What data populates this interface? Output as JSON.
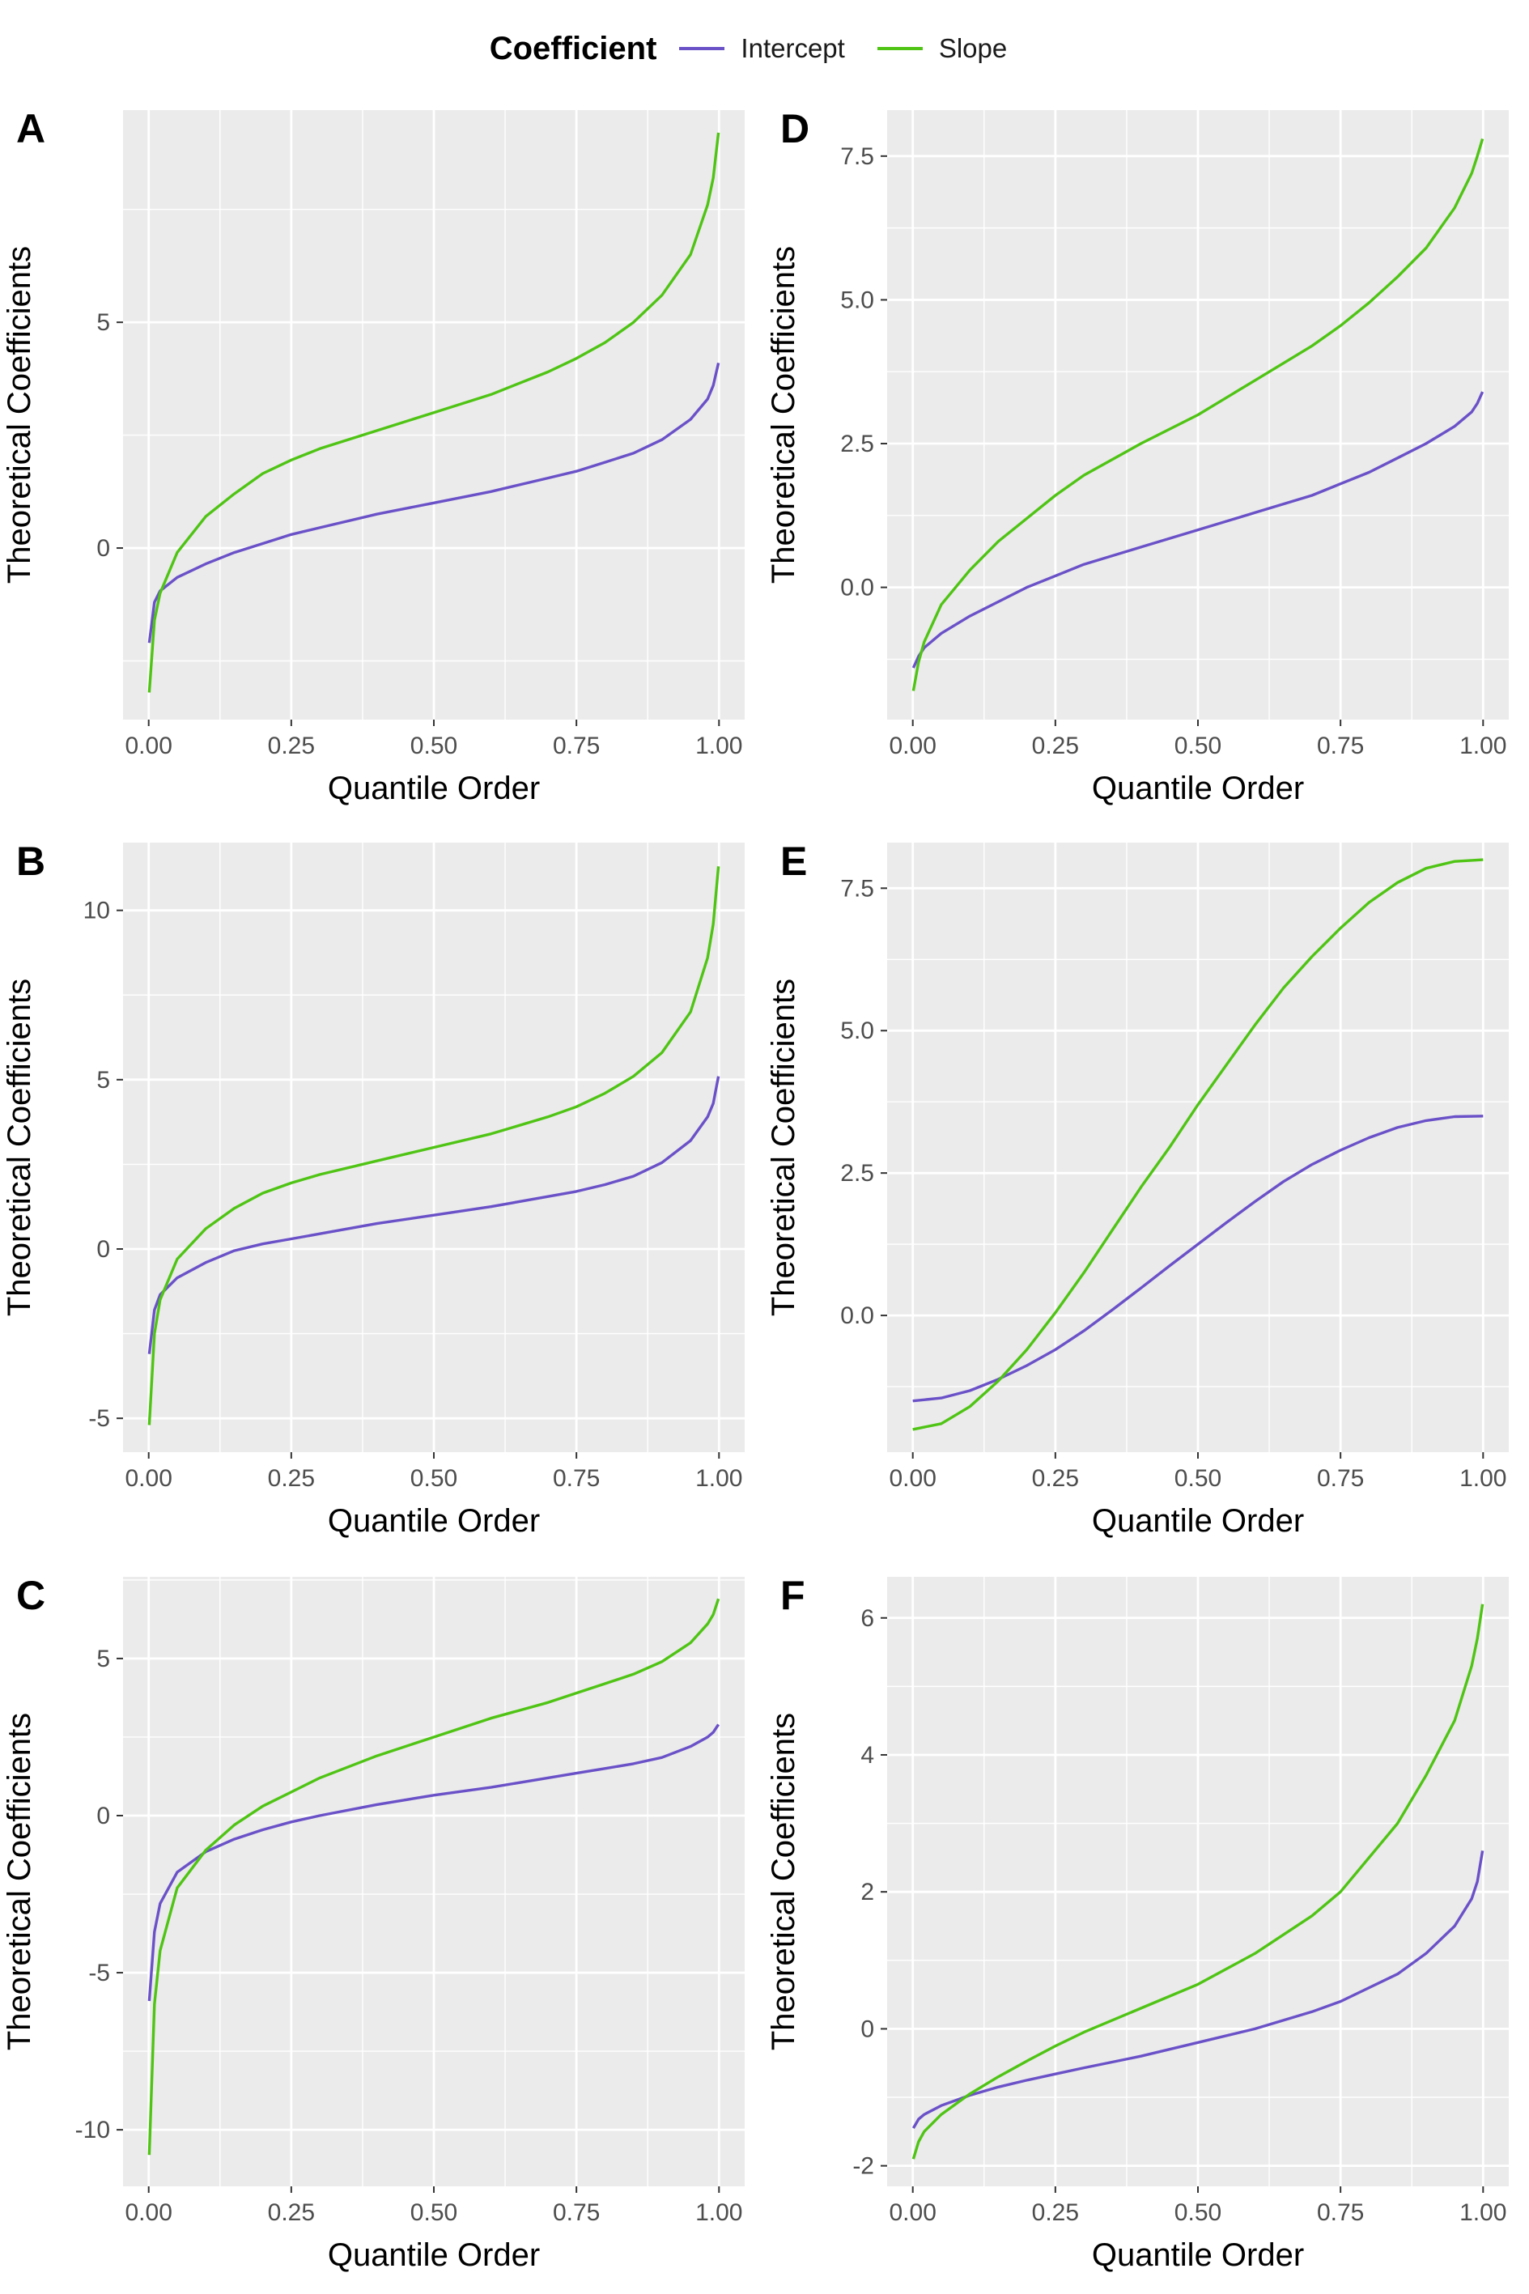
{
  "legend": {
    "title": "Coefficient",
    "entries": [
      {
        "label": "Intercept",
        "color": "#6a51c8"
      },
      {
        "label": "Slope",
        "color": "#4fc414"
      }
    ]
  },
  "colors": {
    "intercept": "#6a51c8",
    "slope": "#4fc414",
    "panel_bg": "#ebebeb",
    "grid": "#ffffff"
  },
  "chart_data": [
    {
      "panel": "A",
      "type": "line",
      "xlabel": "Quantile Order",
      "ylabel": "Theoretical Coefficients",
      "xlim": [
        0,
        1
      ],
      "ylim": [
        -3.8,
        9.7
      ],
      "xticks": [
        0,
        0.25,
        0.5,
        0.75,
        1
      ],
      "xtick_labels": [
        "0.00",
        "0.25",
        "0.50",
        "0.75",
        "1.00"
      ],
      "yticks": [
        0,
        5
      ],
      "ytick_labels": [
        "0",
        "5"
      ],
      "x": [
        0.001,
        0.01,
        0.02,
        0.05,
        0.1,
        0.15,
        0.2,
        0.25,
        0.3,
        0.4,
        0.5,
        0.6,
        0.7,
        0.75,
        0.8,
        0.85,
        0.9,
        0.95,
        0.98,
        0.99,
        0.999
      ],
      "series": [
        {
          "name": "Intercept",
          "values": [
            -2.1,
            -1.2,
            -0.95,
            -0.65,
            -0.35,
            -0.1,
            0.1,
            0.3,
            0.45,
            0.75,
            1.0,
            1.25,
            1.55,
            1.7,
            1.9,
            2.1,
            2.4,
            2.85,
            3.3,
            3.6,
            4.1
          ]
        },
        {
          "name": "Slope",
          "values": [
            -3.2,
            -1.6,
            -1.0,
            -0.1,
            0.7,
            1.2,
            1.65,
            1.95,
            2.2,
            2.6,
            3.0,
            3.4,
            3.9,
            4.2,
            4.55,
            5.0,
            5.6,
            6.5,
            7.6,
            8.2,
            9.2
          ]
        }
      ]
    },
    {
      "panel": "B",
      "type": "line",
      "xlabel": "Quantile Order",
      "ylabel": "Theoretical Coefficients",
      "xlim": [
        0,
        1
      ],
      "ylim": [
        -6.0,
        12.0
      ],
      "xticks": [
        0,
        0.25,
        0.5,
        0.75,
        1
      ],
      "xtick_labels": [
        "0.00",
        "0.25",
        "0.50",
        "0.75",
        "1.00"
      ],
      "yticks": [
        -5,
        0,
        5,
        10
      ],
      "ytick_labels": [
        "-5",
        "0",
        "5",
        "10"
      ],
      "x": [
        0.001,
        0.01,
        0.02,
        0.05,
        0.1,
        0.15,
        0.2,
        0.25,
        0.3,
        0.4,
        0.5,
        0.6,
        0.7,
        0.75,
        0.8,
        0.85,
        0.9,
        0.95,
        0.98,
        0.99,
        0.999
      ],
      "series": [
        {
          "name": "Intercept",
          "values": [
            -3.1,
            -1.8,
            -1.35,
            -0.85,
            -0.4,
            -0.05,
            0.15,
            0.3,
            0.45,
            0.75,
            1.0,
            1.25,
            1.55,
            1.7,
            1.9,
            2.15,
            2.55,
            3.2,
            3.9,
            4.3,
            5.1
          ]
        },
        {
          "name": "Slope",
          "values": [
            -5.2,
            -2.5,
            -1.5,
            -0.3,
            0.6,
            1.2,
            1.65,
            1.95,
            2.2,
            2.6,
            3.0,
            3.4,
            3.9,
            4.2,
            4.6,
            5.1,
            5.8,
            7.0,
            8.6,
            9.6,
            11.3
          ]
        }
      ]
    },
    {
      "panel": "C",
      "type": "line",
      "xlabel": "Quantile Order",
      "ylabel": "Theoretical Coefficients",
      "xlim": [
        0,
        1
      ],
      "ylim": [
        -11.8,
        7.6
      ],
      "xticks": [
        0,
        0.25,
        0.5,
        0.75,
        1
      ],
      "xtick_labels": [
        "0.00",
        "0.25",
        "0.50",
        "0.75",
        "1.00"
      ],
      "yticks": [
        -10,
        -5,
        0,
        5
      ],
      "ytick_labels": [
        "-10",
        "-5",
        "0",
        "5"
      ],
      "x": [
        0.001,
        0.01,
        0.02,
        0.05,
        0.1,
        0.15,
        0.2,
        0.25,
        0.3,
        0.4,
        0.5,
        0.6,
        0.7,
        0.75,
        0.8,
        0.85,
        0.9,
        0.95,
        0.98,
        0.99,
        0.999
      ],
      "series": [
        {
          "name": "Intercept",
          "values": [
            -5.9,
            -3.7,
            -2.8,
            -1.8,
            -1.15,
            -0.75,
            -0.45,
            -0.2,
            0.0,
            0.35,
            0.65,
            0.9,
            1.2,
            1.35,
            1.5,
            1.65,
            1.85,
            2.2,
            2.5,
            2.65,
            2.9
          ]
        },
        {
          "name": "Slope",
          "values": [
            -10.8,
            -6.0,
            -4.3,
            -2.3,
            -1.1,
            -0.3,
            0.3,
            0.75,
            1.2,
            1.9,
            2.5,
            3.1,
            3.6,
            3.9,
            4.2,
            4.5,
            4.9,
            5.5,
            6.1,
            6.4,
            6.9
          ]
        }
      ]
    },
    {
      "panel": "D",
      "type": "line",
      "xlabel": "Quantile Order",
      "ylabel": "Theoretical Coefficients",
      "xlim": [
        0,
        1
      ],
      "ylim": [
        -2.3,
        8.3
      ],
      "xticks": [
        0,
        0.25,
        0.5,
        0.75,
        1
      ],
      "xtick_labels": [
        "0.00",
        "0.25",
        "0.50",
        "0.75",
        "1.00"
      ],
      "yticks": [
        0,
        2.5,
        5,
        7.5
      ],
      "ytick_labels": [
        "0.0",
        "2.5",
        "5.0",
        "7.5"
      ],
      "x": [
        0.001,
        0.01,
        0.02,
        0.05,
        0.1,
        0.15,
        0.2,
        0.25,
        0.3,
        0.4,
        0.5,
        0.6,
        0.7,
        0.75,
        0.8,
        0.85,
        0.9,
        0.95,
        0.98,
        0.99,
        0.999
      ],
      "series": [
        {
          "name": "Intercept",
          "values": [
            -1.4,
            -1.2,
            -1.05,
            -0.8,
            -0.5,
            -0.25,
            0.0,
            0.2,
            0.4,
            0.7,
            1.0,
            1.3,
            1.6,
            1.8,
            2.0,
            2.25,
            2.5,
            2.8,
            3.05,
            3.2,
            3.4
          ]
        },
        {
          "name": "Slope",
          "values": [
            -1.8,
            -1.3,
            -0.95,
            -0.3,
            0.3,
            0.8,
            1.2,
            1.6,
            1.95,
            2.5,
            3.0,
            3.6,
            4.2,
            4.55,
            4.95,
            5.4,
            5.9,
            6.6,
            7.2,
            7.5,
            7.8
          ]
        }
      ]
    },
    {
      "panel": "E",
      "type": "line",
      "xlabel": "Quantile Order",
      "ylabel": "Theoretical Coefficients",
      "xlim": [
        0,
        1
      ],
      "ylim": [
        -2.4,
        8.3
      ],
      "xticks": [
        0,
        0.25,
        0.5,
        0.75,
        1
      ],
      "xtick_labels": [
        "0.00",
        "0.25",
        "0.50",
        "0.75",
        "1.00"
      ],
      "yticks": [
        0,
        2.5,
        5,
        7.5
      ],
      "ytick_labels": [
        "0.0",
        "2.5",
        "5.0",
        "7.5"
      ],
      "x": [
        0.0,
        0.05,
        0.1,
        0.15,
        0.2,
        0.25,
        0.3,
        0.35,
        0.4,
        0.45,
        0.5,
        0.55,
        0.6,
        0.65,
        0.7,
        0.75,
        0.8,
        0.85,
        0.9,
        0.95,
        1.0
      ],
      "series": [
        {
          "name": "Intercept",
          "values": [
            -1.5,
            -1.45,
            -1.32,
            -1.12,
            -0.88,
            -0.6,
            -0.27,
            0.1,
            0.48,
            0.87,
            1.25,
            1.63,
            2.0,
            2.35,
            2.65,
            2.9,
            3.12,
            3.3,
            3.42,
            3.49,
            3.5
          ]
        },
        {
          "name": "Slope",
          "values": [
            -2.0,
            -1.9,
            -1.6,
            -1.15,
            -0.6,
            0.05,
            0.75,
            1.5,
            2.25,
            2.95,
            3.7,
            4.4,
            5.1,
            5.75,
            6.3,
            6.8,
            7.25,
            7.6,
            7.85,
            7.97,
            8.0
          ]
        }
      ]
    },
    {
      "panel": "F",
      "type": "line",
      "xlabel": "Quantile Order",
      "ylabel": "Theoretical Coefficients",
      "xlim": [
        0,
        1
      ],
      "ylim": [
        -2.3,
        6.6
      ],
      "xticks": [
        0,
        0.25,
        0.5,
        0.75,
        1
      ],
      "xtick_labels": [
        "0.00",
        "0.25",
        "0.50",
        "0.75",
        "1.00"
      ],
      "yticks": [
        -2,
        0,
        2,
        4,
        6
      ],
      "ytick_labels": [
        "-2",
        "0",
        "2",
        "4",
        "6"
      ],
      "x": [
        0.001,
        0.01,
        0.02,
        0.05,
        0.1,
        0.15,
        0.2,
        0.25,
        0.3,
        0.4,
        0.5,
        0.6,
        0.7,
        0.75,
        0.8,
        0.85,
        0.9,
        0.95,
        0.98,
        0.99,
        0.999
      ],
      "series": [
        {
          "name": "Intercept",
          "values": [
            -1.45,
            -1.32,
            -1.25,
            -1.12,
            -0.97,
            -0.85,
            -0.75,
            -0.66,
            -0.57,
            -0.4,
            -0.2,
            0.0,
            0.25,
            0.4,
            0.6,
            0.8,
            1.1,
            1.5,
            1.9,
            2.15,
            2.6
          ]
        },
        {
          "name": "Slope",
          "values": [
            -1.9,
            -1.65,
            -1.5,
            -1.25,
            -0.95,
            -0.7,
            -0.47,
            -0.25,
            -0.05,
            0.3,
            0.65,
            1.1,
            1.65,
            2.0,
            2.5,
            3.0,
            3.7,
            4.5,
            5.3,
            5.7,
            6.2
          ]
        }
      ]
    }
  ]
}
